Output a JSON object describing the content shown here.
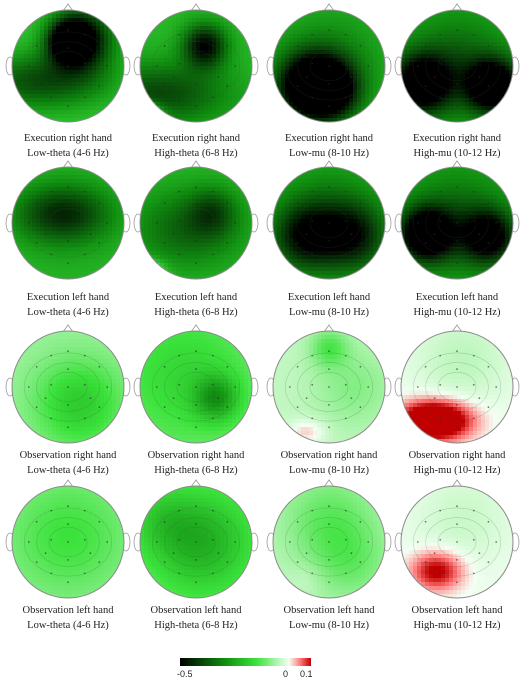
{
  "panels": [
    {
      "line1": "Execution right hand",
      "line2": "Low-theta (4-6 Hz)",
      "field": [
        [
          -0.27,
          0.5,
          0.28,
          0.12
        ],
        [
          -0.33,
          0.62,
          0.26,
          0.2
        ],
        [
          -0.2,
          0.24,
          0.64,
          0.44,
          0.18
        ]
      ],
      "base": -0.19
    },
    {
      "line1": "Execution right hand",
      "line2": "High-theta (6-8 Hz)",
      "field": [
        [
          -0.27,
          0.58,
          0.32,
          0.14
        ],
        [
          -0.18,
          0.18,
          0.75,
          0.44,
          0.2
        ],
        [
          0.32,
          0.0,
          0.92,
          0.12,
          0.06
        ]
      ],
      "base": -0.22
    },
    {
      "line1": "Execution right hand",
      "line2": "Low-mu (8-10 Hz)",
      "field": [
        [
          -0.3,
          0.5,
          0.72,
          0.18
        ],
        [
          -0.3,
          0.3,
          0.68,
          0.2
        ],
        [
          -0.1,
          0.5,
          0.5,
          0.3
        ]
      ],
      "base": -0.23
    },
    {
      "line1": "Execution right hand",
      "line2": "High-mu (10-12 Hz)",
      "field": [
        [
          -0.38,
          0.82,
          0.68,
          0.16
        ],
        [
          -0.34,
          0.18,
          0.66,
          0.18
        ],
        [
          -0.12,
          0.5,
          0.5,
          0.3
        ]
      ],
      "base": -0.25
    },
    {
      "line1": "Execution left hand",
      "line2": "Low-theta (4-6 Hz)",
      "field": [
        [
          -0.2,
          0.45,
          0.42,
          0.3,
          0.18
        ],
        [
          -0.05,
          0.5,
          0.5,
          0.5
        ]
      ],
      "base": -0.2
    },
    {
      "line1": "Execution left hand",
      "line2": "High-theta (6-8 Hz)",
      "field": [
        [
          -0.12,
          0.65,
          0.4,
          0.15
        ],
        [
          -0.14,
          0.42,
          0.55,
          0.35,
          0.25
        ],
        [
          0.32,
          0.0,
          0.92,
          0.12,
          0.06
        ]
      ],
      "base": -0.22
    },
    {
      "line1": "Execution left hand",
      "line2": "Low-mu (8-10 Hz)",
      "field": [
        [
          -0.2,
          0.28,
          0.62,
          0.2
        ],
        [
          -0.18,
          0.72,
          0.62,
          0.2
        ],
        [
          -0.12,
          0.5,
          0.5,
          0.3
        ]
      ],
      "base": -0.24
    },
    {
      "line1": "Execution left hand",
      "line2": "High-mu (10-12 Hz)",
      "field": [
        [
          -0.36,
          0.22,
          0.6,
          0.16
        ],
        [
          -0.28,
          0.78,
          0.62,
          0.16
        ],
        [
          -0.12,
          0.5,
          0.5,
          0.3
        ]
      ],
      "base": -0.25
    },
    {
      "line1": "Observation right hand",
      "line2": "Low-theta (4-6 Hz)",
      "field": [
        [
          -0.12,
          0.6,
          0.65,
          0.28
        ]
      ],
      "base": -0.07
    },
    {
      "line1": "Observation right hand",
      "line2": "High-theta (6-8 Hz)",
      "field": [
        [
          -0.15,
          0.68,
          0.6,
          0.14
        ],
        [
          -0.07,
          0.4,
          0.4,
          0.4
        ]
      ],
      "base": -0.1
    },
    {
      "line1": "Observation right hand",
      "line2": "Low-mu (8-10 Hz)",
      "field": [
        [
          -0.09,
          0.5,
          0.15,
          0.12
        ],
        [
          -0.05,
          0.72,
          0.5,
          0.25
        ],
        [
          0.06,
          0.3,
          0.9,
          0.12,
          0.08
        ]
      ],
      "base": -0.04
    },
    {
      "line1": "Observation right hand",
      "line2": "High-mu (10-12 Hz)",
      "field": [
        [
          0.22,
          0.3,
          0.8,
          0.22,
          0.12
        ],
        [
          -0.04,
          0.55,
          0.25,
          0.3
        ]
      ],
      "base": -0.005
    },
    {
      "line1": "Observation left hand",
      "line2": "Low-theta (4-6 Hz)",
      "field": [
        [
          -0.09,
          0.5,
          0.45,
          0.42
        ]
      ],
      "base": -0.06
    },
    {
      "line1": "Observation left hand",
      "line2": "High-theta (6-8 Hz)",
      "field": [
        [
          -0.14,
          0.55,
          0.5,
          0.32
        ],
        [
          -0.06,
          0.2,
          0.3,
          0.2
        ]
      ],
      "base": -0.1
    },
    {
      "line1": "Observation left hand",
      "line2": "Low-mu (8-10 Hz)",
      "field": [
        [
          -0.08,
          0.5,
          0.3,
          0.3
        ],
        [
          -0.06,
          0.7,
          0.7,
          0.25
        ],
        [
          0.02,
          0.3,
          0.82,
          0.1
        ]
      ],
      "base": -0.04
    },
    {
      "line1": "Observation left hand",
      "line2": "High-mu (10-12 Hz)",
      "field": [
        [
          0.12,
          0.32,
          0.76,
          0.16,
          0.12
        ],
        [
          -0.03,
          0.55,
          0.3,
          0.3
        ]
      ],
      "base": -0.005
    }
  ],
  "colorbar": {
    "min_label": "-0.5",
    "zero_label": "0",
    "max_label": "0.1",
    "min": -0.5,
    "max": 0.1,
    "stops": [
      {
        "v": -0.5,
        "c": "#000000"
      },
      {
        "v": -0.3,
        "c": "#0f8a0f"
      },
      {
        "v": -0.15,
        "c": "#3be23b"
      },
      {
        "v": 0.0,
        "c": "#f4fff4"
      },
      {
        "v": 0.05,
        "c": "#ff7a7a"
      },
      {
        "v": 0.1,
        "c": "#c00000"
      }
    ]
  }
}
